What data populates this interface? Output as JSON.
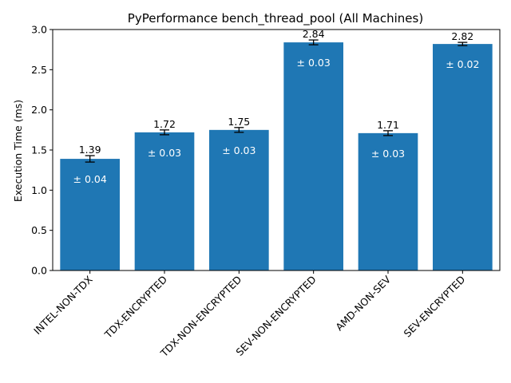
{
  "chart_data": {
    "type": "bar",
    "title": "PyPerformance bench_thread_pool (All Machines)",
    "xlabel": "",
    "ylabel": "Execution Time (ms)",
    "ylim": [
      0,
      3.0
    ],
    "yticks": [
      "0.0",
      "0.5",
      "1.0",
      "1.5",
      "2.0",
      "2.5",
      "3.0"
    ],
    "grid": false,
    "bar_color": "#1f77b4",
    "categories": [
      "INTEL-NON-TDX",
      "TDX-ENCRYPTED",
      "TDX-NON-ENCRYPTED",
      "SEV-NON-ENCRYPTED",
      "AMD-NON-SEV",
      "SEV-ENCRYPTED"
    ],
    "values": [
      1.39,
      1.72,
      1.75,
      2.84,
      1.71,
      2.82
    ],
    "errors": [
      0.04,
      0.03,
      0.03,
      0.03,
      0.03,
      0.02
    ],
    "value_labels": [
      "1.39",
      "1.72",
      "1.75",
      "2.84",
      "1.71",
      "2.82"
    ],
    "error_labels": [
      "± 0.04",
      "± 0.03",
      "± 0.03",
      "± 0.03",
      "± 0.03",
      "± 0.02"
    ]
  }
}
